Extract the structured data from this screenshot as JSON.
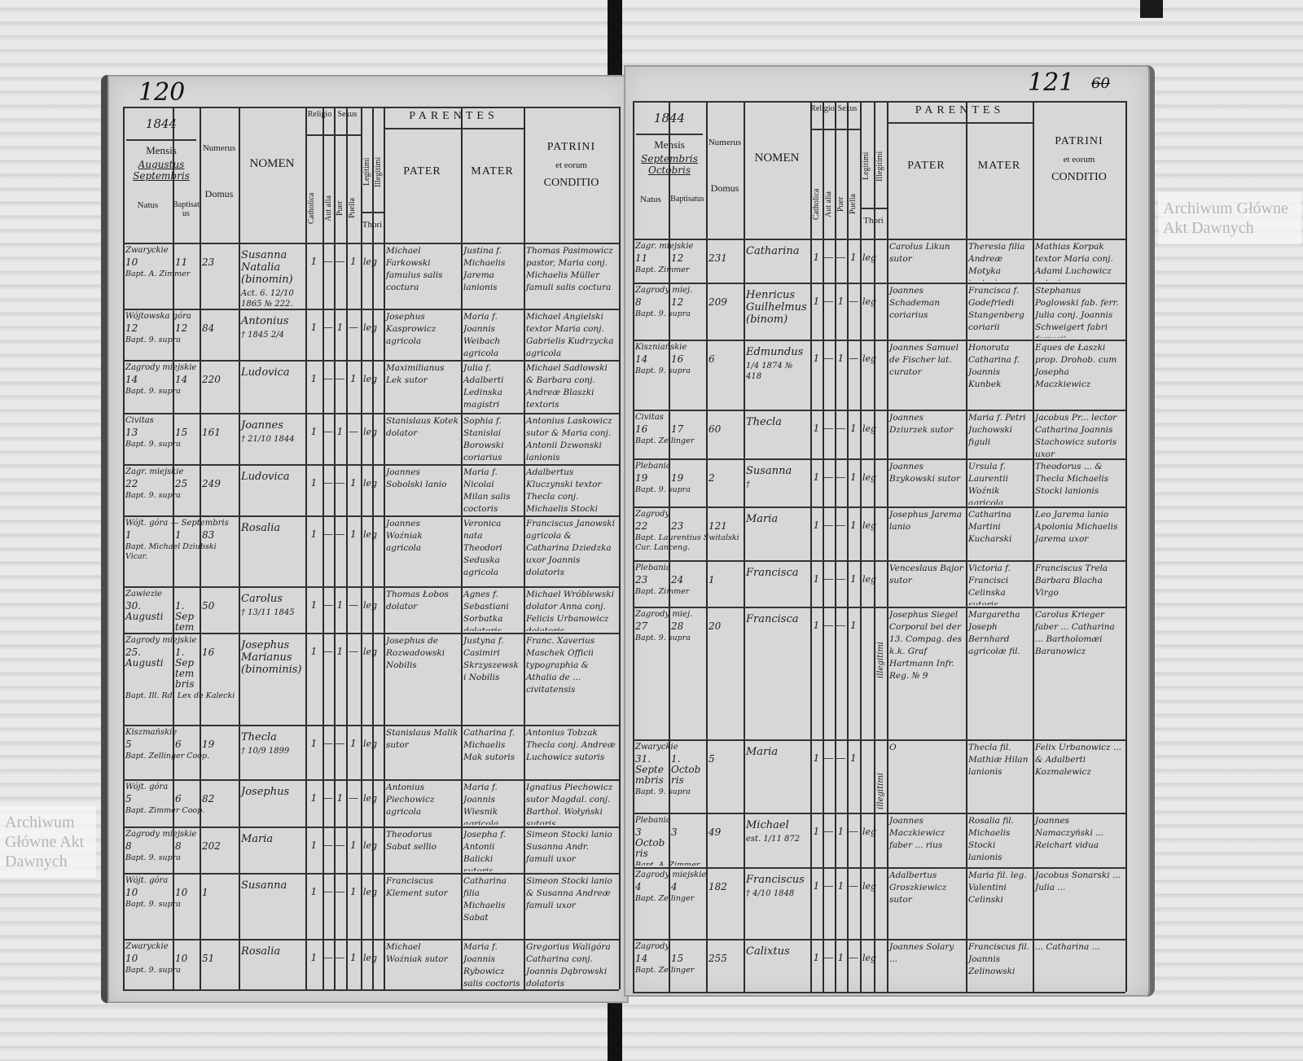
{
  "header": {
    "mensis": "Mensis",
    "natus": "Natus",
    "baptisatus": "Baptisatus",
    "numerus": "Numerus",
    "domus": "Domus",
    "nomen": "NOMEN",
    "religio": "Religio",
    "sexus": "Sexus",
    "catholica": "Catholica",
    "aut_alia": "Aut alia",
    "puer": "Puer",
    "puella": "Puella",
    "legitimi": "Legitimi",
    "illegitimi": "Illegitimi",
    "thori": "Thori",
    "parentes": "PARENTES",
    "pater": "PATER",
    "mater": "MATER",
    "patrini": "PATRINI",
    "et_eorum": "et eorum",
    "conditio": "CONDITIO"
  },
  "marks": {
    "one": "1",
    "dash": "—"
  },
  "watermark": "Archiwum Główne Akt Dawnych",
  "colors": {
    "paper": "#d7d7d7",
    "ink": "#1e1e1e",
    "watermark": "#b5b5b5"
  },
  "pages": [
    {
      "page_number": "120",
      "year": "1844",
      "months": "Augustus Septembris",
      "entries": [
        {
          "locus": "Zwaryckie",
          "natus": "10",
          "baptisatus": "11",
          "domus": "23",
          "nomen": "Susanna Natalia (binomin)",
          "nota": "Act. 6. 12/10 1865 № 222.",
          "sexus": "puella",
          "thori": "leg",
          "pater": "Michael Farkowski famulus salis coctura",
          "mater": "Justina f. Michaelis Jarema lanionis",
          "patrini": "Thomas Pasimowicz pastor, Maria conj. Michaelis Müller famuli salis coctura",
          "baptizans": "Bapt. A. Zimmer"
        },
        {
          "locus": "Wójtowska góra",
          "natus": "12",
          "baptisatus": "12",
          "domus": "84",
          "nomen": "Antonius",
          "nota": "† 1845 2/4",
          "sexus": "puer",
          "thori": "leg",
          "pater": "Josephus Kasprowicz agricola",
          "mater": "Maria f. Joannis Weibach agricola",
          "patrini": "Michael Angielski textor Maria conj. Gabrielis Kudrzycka agricola",
          "baptizans": "Bapt. 9. supra"
        },
        {
          "locus": "Zagrody miejskie",
          "natus": "14",
          "baptisatus": "14",
          "domus": "220",
          "nomen": "Ludovica",
          "nota": "",
          "sexus": "puella",
          "thori": "leg",
          "pater": "Maximilianus Lek sutor",
          "mater": "Julia f. Adalberti Ledinska magistri scholæ",
          "patrini": "Michael Sadlowski & Barbara conj. Andreæ Blaszki textoris",
          "baptizans": "Bapt. 9. supra"
        },
        {
          "locus": "Civitas",
          "natus": "13",
          "baptisatus": "15",
          "domus": "161",
          "nomen": "Joannes",
          "nota": "† 21/10 1844",
          "sexus": "puer",
          "thori": "leg",
          "pater": "Stanislaus Kotek dolator",
          "mater": "Sophia f. Stanislai Borowski coriarius",
          "patrini": "Antonius Laskowicz sutor & Maria conj. Antonii Dzwonski lanionis",
          "baptizans": "Bapt. 9. supra"
        },
        {
          "locus": "Zagr. miejskie",
          "natus": "22",
          "baptisatus": "25",
          "domus": "249",
          "nomen": "Ludovica",
          "nota": "",
          "sexus": "puella",
          "thori": "leg",
          "pater": "Joannes Sobolski lanio",
          "mater": "Maria f. Nicolai Milan salis coctoris",
          "patrini": "Adalbertus Kluczynski textor Thecla conj. Michaelis Stocki lanionis",
          "baptizans": "Bapt. 9. supra"
        },
        {
          "locus": "Wójt. góra — Septembris",
          "natus": "1",
          "baptisatus": "1",
          "domus": "83",
          "nomen": "Rosalia",
          "nota": "",
          "sexus": "puella",
          "thori": "leg",
          "pater": "Joannes Woźniak agricola",
          "mater": "Veronica nata Theodori Seduska agricola",
          "patrini": "Franciscus Janowski agricola & Catharina Dziedzka uxor Joannis dolatoris",
          "baptizans": "Bapt. Michael Dziubski Vicar."
        },
        {
          "locus": "Zawiezie",
          "natus": "30. Augusti",
          "baptisatus": "1. Septembris",
          "domus": "50",
          "nomen": "Carolus",
          "nota": "† 13/11 1845",
          "sexus": "puer",
          "thori": "leg",
          "pater": "Thomas Łobos dolator",
          "mater": "Agnes f. Sebastiani Sorbatka dolatoris",
          "patrini": "Michael Wróblewski dolator Anna conj. Felicis Urbanowicz dolatoris",
          "baptizans": "Bapt. Rd. Zellinger"
        },
        {
          "locus": "Zagrody miejskie",
          "natus": "25. Augusti",
          "baptisatus": "1. Septembris",
          "domus": "16",
          "nomen": "Josephus Marianus (binominis)",
          "nota": "",
          "sexus": "puer",
          "thori": "leg",
          "pater": "Josephus de Rozwadowski Nobilis",
          "mater": "Justyna f. Casimiri Skrzyszewski Nobilis",
          "patrini": "Franc. Xaverius Maschek Officii typographia & Athalia de ... civitatensis",
          "baptizans": "Bapt. Ill. Rd. Lex de Kalecki"
        },
        {
          "locus": "Kiszmańskie",
          "natus": "5",
          "baptisatus": "6",
          "domus": "19",
          "nomen": "Thecla",
          "nota": "† 10/9 1899",
          "sexus": "puella",
          "thori": "leg",
          "pater": "Stanislaus Malik sutor",
          "mater": "Catharina f. Michaelis Mak sutoris",
          "patrini": "Antonius Tobzak Thecla conj. Andreæ Luchowicz sutoris",
          "baptizans": "Bapt. Zellinger Coop."
        },
        {
          "locus": "Wójt. góra",
          "natus": "5",
          "baptisatus": "6",
          "domus": "82",
          "nomen": "Josephus",
          "nota": "",
          "sexus": "puer",
          "thori": "leg",
          "pater": "Antonius Piechowicz agricola",
          "mater": "Maria f. Joannis Wiesnik agricola",
          "patrini": "Ignatius Piechowicz sutor Magdal. conj. Barthol. Wołyński sutoris",
          "baptizans": "Bapt. Zimmer Coop."
        },
        {
          "locus": "Zagrody miejskie",
          "natus": "8",
          "baptisatus": "8",
          "domus": "202",
          "nomen": "Maria",
          "nota": "",
          "sexus": "puella",
          "thori": "leg",
          "pater": "Theodorus Sabat sellio",
          "mater": "Josepha f. Antonii Balicki sutoris",
          "patrini": "Simeon Stocki lanio Susanna Andr. famuli uxor",
          "baptizans": "Bapt. 9. supra"
        },
        {
          "locus": "Wójt. góra",
          "natus": "10",
          "baptisatus": "10",
          "domus": "1",
          "nomen": "Susanna",
          "nota": "",
          "sexus": "puella",
          "thori": "leg",
          "pater": "Franciscus Klement sutor",
          "mater": "Catharina filia Michaelis Sabat",
          "patrini": "Simeon Stocki lanio & Susanna Andreæ famuli uxor",
          "baptizans": "Bapt. 9. supra"
        },
        {
          "locus": "Zwaryckie",
          "natus": "10",
          "baptisatus": "10",
          "domus": "51",
          "nomen": "Rosalia",
          "nota": "",
          "sexus": "puella",
          "thori": "leg",
          "pater": "Michael Woźniak sutor",
          "mater": "Maria f. Joannis Rybowicz salis coctoris",
          "patrini": "Gregorius Waligóra Catharina conj. Joannis Dąbrowski dolatoris",
          "baptizans": "Bapt. 9. supra"
        }
      ]
    },
    {
      "page_number": "121",
      "page_number_crossed": "60",
      "year": "1844",
      "months": "Septembris Octobris",
      "entries": [
        {
          "locus": "Zagr. miejskie",
          "natus": "11",
          "baptisatus": "12",
          "domus": "231",
          "nomen": "Catharina",
          "nota": "",
          "sexus": "puella",
          "thori": "leg",
          "pater": "Carolus Likun sutor",
          "mater": "Theresia filia Andreæ Motyka textoris",
          "patrini": "Mathias Korpak textor Maria conj. Adami Luchowicz sutoris",
          "baptizans": "Bapt. Zimmer"
        },
        {
          "locus": "Zagrody miej.",
          "natus": "8",
          "baptisatus": "12",
          "domus": "209",
          "nomen": "Henricus Guilhelmus (binom)",
          "nota": "",
          "sexus": "puer",
          "thori": "leg",
          "pater": "Joannes Schademan coriarius",
          "mater": "Francisca f. Godefriedi Stangenberg coriarii",
          "patrini": "Stephanus Poglowski fab. ferr. Julia conj. Joannis Schweigert fabri ferrarii",
          "baptizans": "Bapt. 9. supra"
        },
        {
          "locus": "Kiszniańskie",
          "natus": "14",
          "baptisatus": "16",
          "domus": "6",
          "nomen": "Edmundus",
          "nota": "1/4 1874 № 418",
          "sexus": "puer",
          "thori": "leg",
          "pater": "Joannes Samuel de Fischer lat. curator",
          "mater": "Honorata Catharina f. Joannis Kunbek",
          "patrini": "Eques de Łaszki prop. Drohob. cum Josepha Maczkiewicz",
          "baptizans": "Bapt. 9. supra"
        },
        {
          "locus": "Civitas",
          "natus": "16",
          "baptisatus": "17",
          "domus": "60",
          "nomen": "Thecla",
          "nota": "",
          "sexus": "puella",
          "thori": "leg",
          "pater": "Joannes Dziurzek sutor",
          "mater": "Maria f. Petri Juchowski figuli",
          "patrini": "Jacobus Pr... lector Catharina Joannis Stachowicz sutoris uxor",
          "baptizans": "Bapt. Zellinger"
        },
        {
          "locus": "Plebania",
          "natus": "19",
          "baptisatus": "19",
          "domus": "2",
          "nomen": "Susanna",
          "nota": "†",
          "sexus": "puella",
          "thori": "leg",
          "pater": "Joannes Bzykowski sutor",
          "mater": "Ursula f. Laurentii Woźnik agricola",
          "patrini": "Theodorus ... & Thecla Michaelis Stocki lanionis",
          "baptizans": "Bapt. 9. supra"
        },
        {
          "locus": "Zagrody",
          "natus": "22",
          "baptisatus": "23",
          "domus": "121",
          "nomen": "Maria",
          "nota": "",
          "sexus": "puella",
          "thori": "leg",
          "pater": "Josephus Jarema lanio",
          "mater": "Catharina Martini Kucharski",
          "patrini": "Leo Jarema lanio Apolonia Michaelis Jarema uxor",
          "baptizans": "Bapt. Laurentius Świtalski Cur. Lanceng."
        },
        {
          "locus": "Plebania",
          "natus": "23",
          "baptisatus": "24",
          "domus": "1",
          "nomen": "Francisca",
          "nota": "",
          "sexus": "puella",
          "thori": "leg",
          "pater": "Venceslaus Bajor sutor",
          "mater": "Victoria f. Francisci Celinska sutoris",
          "patrini": "Franciscus Trela Barbara Blacha Virgo",
          "baptizans": "Bapt. Zimmer"
        },
        {
          "locus": "Zagrody miej.",
          "natus": "27",
          "baptisatus": "28",
          "domus": "20",
          "nomen": "Francisca",
          "nota": "",
          "sexus": "puella",
          "thori": "illegitimi",
          "pater": "Josephus Siegel Corporal bei der 13. Compag. des k.k. Graf Hartmann Infr. Reg. № 9",
          "mater": "Margaretha Joseph Bernhard agricolæ fil.",
          "patrini": "Carolus Krieger faber ... Catharina ... Bartholomæi Baranowicz",
          "baptizans": "Bapt. 9. supra"
        },
        {
          "locus": "Zwaryckie",
          "natus": "31. Septembris",
          "baptisatus": "1. Octobris",
          "domus": "5",
          "nomen": "Maria",
          "nota": "",
          "sexus": "puella",
          "thori": "illegitimi",
          "pater": "O",
          "mater": "Thecla fil. Mathiæ Hilan lanionis",
          "patrini": "Felix Urbanowicz ... & Adalberti Kozmalewicz",
          "baptizans": "Bapt. 9. supra"
        },
        {
          "locus": "Plebania",
          "natus": "3 Octobris",
          "baptisatus": "3",
          "domus": "49",
          "nomen": "Michael",
          "nota": "est. 1/11 872",
          "sexus": "puer",
          "thori": "leg",
          "pater": "Joannes Maczkiewicz faber ... rius",
          "mater": "Rosalia fil. Michaelis Stocki lanionis",
          "patrini": "Joannes Namaczyński ... Reichart vidua",
          "baptizans": "Bapt. A. Zimmer"
        },
        {
          "locus": "Zagrody miejskie",
          "natus": "4",
          "baptisatus": "4",
          "domus": "182",
          "nomen": "Franciscus",
          "nota": "† 4/10 1848",
          "sexus": "puer",
          "thori": "leg",
          "pater": "Adalbertus Groszkiewicz sutor",
          "mater": "Maria fil. leg. Valentini Celinski",
          "patrini": "Jacobus Sonarski ... Julia ...",
          "baptizans": "Bapt. Zellinger"
        },
        {
          "locus": "Zagrody",
          "natus": "14",
          "baptisatus": "15",
          "domus": "255",
          "nomen": "Calixtus",
          "nota": "",
          "sexus": "puer",
          "thori": "leg",
          "pater": "Joannes Solary ...",
          "mater": "Franciscus fil. Joannis Zelinowski",
          "patrini": "... Catharina ...",
          "baptizans": "Bapt. Zellinger"
        }
      ]
    }
  ]
}
